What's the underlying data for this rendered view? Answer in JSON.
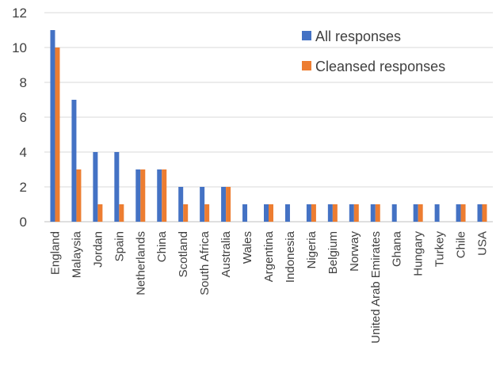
{
  "chart_data": {
    "type": "bar",
    "title": "",
    "xlabel": "",
    "ylabel": "",
    "ylim": [
      0,
      12
    ],
    "yticks": [
      0,
      2,
      4,
      6,
      8,
      10,
      12
    ],
    "grid": "horizontal",
    "legend_position": "top-right",
    "categories": [
      "England",
      "Malaysia",
      "Jordan",
      "Spain",
      "Netherlands",
      "China",
      "Scotland",
      "South Africa",
      "Australia",
      "Wales",
      "Argentina",
      "Indonesia",
      "Nigeria",
      "Belgium",
      "Norway",
      "United Arab Emirates",
      "Ghana",
      "Hungary",
      "Turkey",
      "Chile",
      "USA"
    ],
    "series": [
      {
        "name": "All responses",
        "color": "#4472C4",
        "values": [
          11,
          7,
          4,
          4,
          3,
          3,
          2,
          2,
          2,
          1,
          1,
          1,
          1,
          1,
          1,
          1,
          1,
          1,
          1,
          1,
          1
        ]
      },
      {
        "name": "Cleansed responses",
        "color": "#ED7D31",
        "values": [
          10,
          3,
          1,
          1,
          3,
          3,
          1,
          1,
          2,
          0,
          1,
          0,
          1,
          1,
          1,
          1,
          0,
          1,
          0,
          1,
          1
        ]
      }
    ]
  }
}
